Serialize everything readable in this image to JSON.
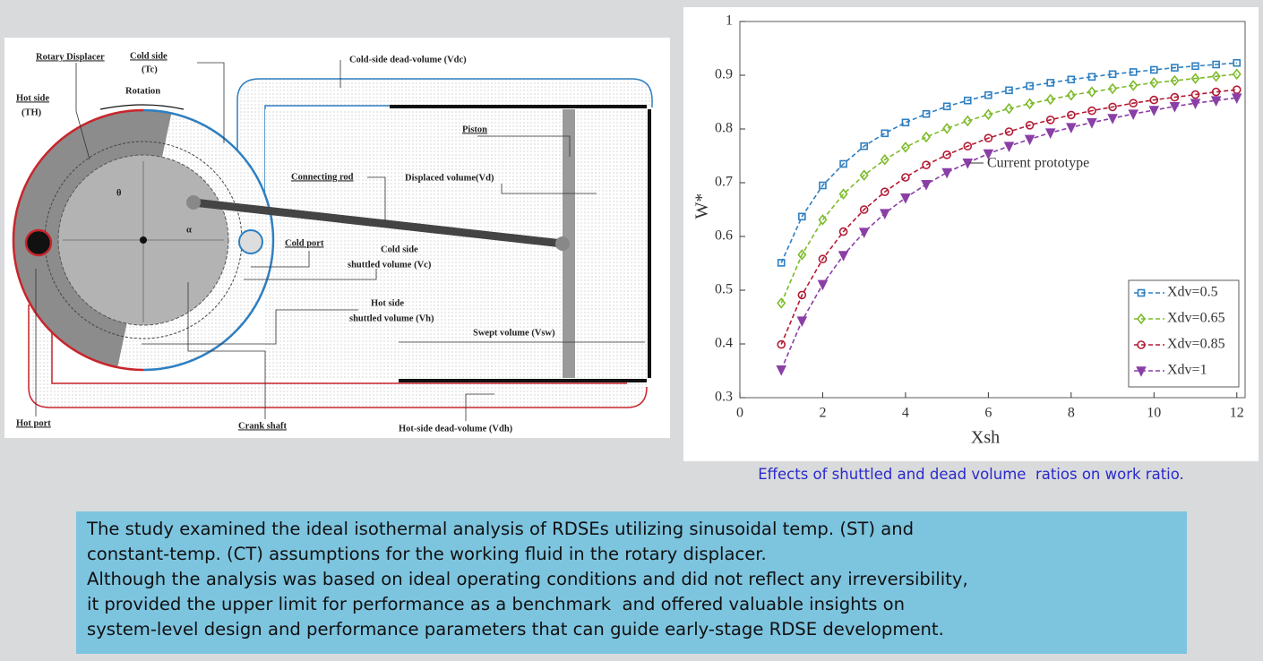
{
  "diagram": {
    "labels": [
      "Rotary Displacer",
      "Cold side",
      "(Tc)",
      "Rotation",
      "Hot side",
      "(TH)",
      "Cold-side dead-volume (Vdc)",
      "Piston",
      "Connecting rod",
      "Displaced volume(Vd)",
      "θ",
      "α",
      "Cold port",
      "Cold side",
      "shuttled volume (Vc)",
      "Hot side",
      "shuttled volume (Vh)",
      "Swept volume (Vsw)",
      "Hot port",
      "Crank shaft",
      "Hot-side dead-volume (Vdh)"
    ]
  },
  "chart_data": {
    "type": "line",
    "x_label": "Xsh",
    "y_label": "W*",
    "annotation": "Current prototype",
    "x": [
      1,
      1.5,
      2,
      2.5,
      3,
      3.5,
      4,
      4.5,
      5,
      5.5,
      6,
      6.5,
      7,
      7.5,
      8,
      8.5,
      9,
      9.5,
      10,
      10.5,
      11,
      11.5,
      12
    ],
    "series": [
      {
        "name": "Xdv=0.5",
        "color": "#2e7fc1",
        "marker": "square",
        "values": [
          0.551,
          0.637,
          0.695,
          0.735,
          0.768,
          0.792,
          0.812,
          0.828,
          0.842,
          0.853,
          0.863,
          0.872,
          0.88,
          0.886,
          0.892,
          0.897,
          0.902,
          0.906,
          0.91,
          0.914,
          0.917,
          0.92,
          0.923
        ]
      },
      {
        "name": "Xdv=0.65",
        "color": "#7dbb2a",
        "marker": "diamond",
        "values": [
          0.476,
          0.566,
          0.631,
          0.679,
          0.714,
          0.743,
          0.766,
          0.785,
          0.801,
          0.815,
          0.827,
          0.838,
          0.847,
          0.855,
          0.863,
          0.869,
          0.875,
          0.881,
          0.886,
          0.89,
          0.894,
          0.898,
          0.902
        ]
      },
      {
        "name": "Xdv=0.85",
        "color": "#b31b34",
        "marker": "circle",
        "values": [
          0.399,
          0.491,
          0.558,
          0.609,
          0.65,
          0.683,
          0.71,
          0.733,
          0.752,
          0.768,
          0.783,
          0.795,
          0.807,
          0.817,
          0.826,
          0.834,
          0.841,
          0.848,
          0.854,
          0.859,
          0.864,
          0.869,
          0.873
        ]
      },
      {
        "name": "Xdv=1",
        "color": "#8a3fa6",
        "marker": "triangle-down",
        "values": [
          0.352,
          0.443,
          0.511,
          0.565,
          0.608,
          0.643,
          0.672,
          0.697,
          0.719,
          0.737,
          0.754,
          0.768,
          0.781,
          0.793,
          0.803,
          0.812,
          0.82,
          0.828,
          0.835,
          0.842,
          0.848,
          0.853,
          0.858
        ]
      }
    ],
    "xlim": [
      0,
      12.2
    ],
    "xticks": [
      0,
      2,
      4,
      6,
      8,
      10,
      12
    ],
    "ylim": [
      0.3,
      1
    ],
    "yticks": [
      0.3,
      0.4,
      0.5,
      0.6,
      0.7,
      0.8,
      0.9,
      1
    ],
    "grid": false,
    "legend": "lower-right"
  },
  "caption": "Effects of shuttled and dead volume  ratios on work ratio.",
  "summary": {
    "lines": [
      "The study examined the ideal isothermal analysis of RDSEs utilizing sinusoidal temp. (ST) and",
      "constant-temp. (CT) assumptions for the working fluid in the rotary displacer.",
      "Although the analysis was based on ideal operating conditions and did not reflect any irreversibility,",
      "it provided the upper limit for performance as a benchmark  and offered valuable insights on",
      "system-level design and performance parameters that can guide early-stage RDSE development."
    ]
  }
}
